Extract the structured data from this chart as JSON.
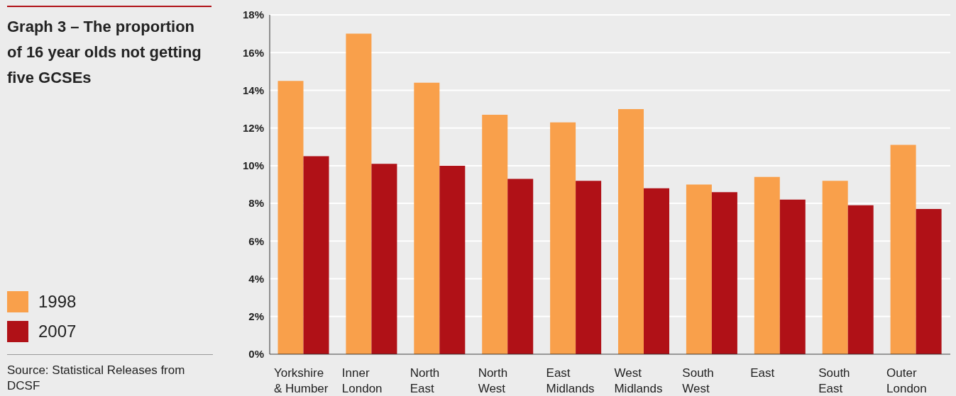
{
  "chart_data": {
    "type": "bar",
    "title": "Graph 3 – The proportion of 16 year olds not getting five GCSEs",
    "categories": [
      "Yorkshire & Humber",
      "Inner London",
      "North East",
      "North West",
      "East Midlands",
      "West Midlands",
      "South West",
      "East",
      "South East",
      "Outer London"
    ],
    "series": [
      {
        "name": "1998",
        "color": "#f9a04b",
        "values": [
          14.5,
          17.0,
          14.4,
          12.7,
          12.3,
          13.0,
          9.0,
          9.4,
          9.2,
          11.1
        ]
      },
      {
        "name": "2007",
        "color": "#b01117",
        "values": [
          10.5,
          10.1,
          10.0,
          9.3,
          9.2,
          8.8,
          8.6,
          8.2,
          7.9,
          7.7
        ]
      }
    ],
    "ylim": [
      0,
      18
    ],
    "yticks": [
      {
        "value": 0,
        "label": "0%"
      },
      {
        "value": 2,
        "label": "2%"
      },
      {
        "value": 4,
        "label": "4%"
      },
      {
        "value": 6,
        "label": "6%"
      },
      {
        "value": 8,
        "label": "8%"
      },
      {
        "value": 10,
        "label": "10%"
      },
      {
        "value": 12,
        "label": "12%"
      },
      {
        "value": 14,
        "label": "14%"
      },
      {
        "value": 16,
        "label": "16%"
      },
      {
        "value": 18,
        "label": "18%"
      }
    ],
    "grid": "y",
    "legend": "left",
    "annotations": [
      "Source: Statistical Releases from DCSF"
    ]
  }
}
